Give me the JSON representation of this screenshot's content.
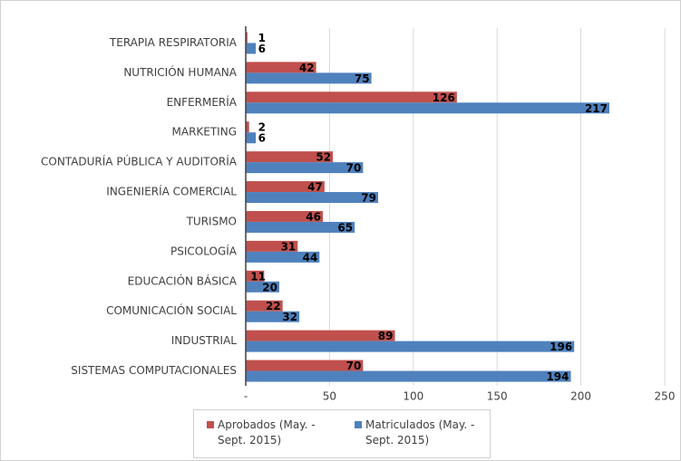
{
  "chart_data": {
    "type": "barh",
    "categories": [
      "TERAPIA RESPIRATORIA",
      "NUTRICIÓN HUMANA",
      "ENFERMERÍA",
      "MARKETING",
      "CONTADURÍA PÚBLICA Y AUDITORÍA",
      "INGENIERÍA COMERCIAL",
      "TURISMO",
      "PSICOLOGÍA",
      "EDUCACIÓN BÁSICA",
      "COMUNICACIÓN SOCIAL",
      "INDUSTRIAL",
      "SISTEMAS COMPUTACIONALES"
    ],
    "series": [
      {
        "name": "Aprobados (May. - Sept. 2015)",
        "color": "#c0504d",
        "values": [
          1,
          42,
          126,
          2,
          52,
          47,
          46,
          31,
          11,
          22,
          89,
          70
        ]
      },
      {
        "name": "Matriculados (May. - Sept. 2015)",
        "color": "#4f81bd",
        "values": [
          6,
          75,
          217,
          6,
          70,
          79,
          65,
          44,
          20,
          32,
          196,
          194
        ]
      }
    ],
    "xlim": [
      0,
      250
    ],
    "xticks": [
      {
        "value": 0,
        "label": "-"
      },
      50,
      100,
      150,
      200,
      250
    ],
    "grid": true,
    "legend": "bottom"
  }
}
